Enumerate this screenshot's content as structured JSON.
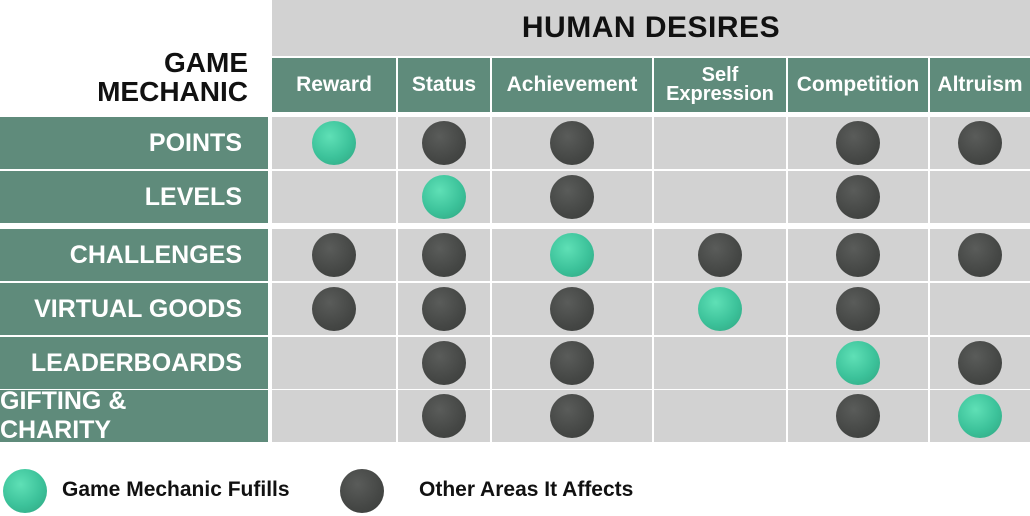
{
  "title": "HUMAN DESIRES",
  "corner": {
    "line1": "GAME",
    "line2": "MECHANIC"
  },
  "columns": [
    {
      "lines": [
        "Reward"
      ]
    },
    {
      "lines": [
        "Status"
      ]
    },
    {
      "lines": [
        "Achievement"
      ]
    },
    {
      "lines": [
        "Self",
        "Expression"
      ]
    },
    {
      "lines": [
        "Competition"
      ]
    },
    {
      "lines": [
        "Altruism"
      ]
    }
  ],
  "rows": [
    {
      "label": "POINTS",
      "cells": [
        "F",
        "A",
        "A",
        "",
        "A",
        "A"
      ]
    },
    {
      "label": "LEVELS",
      "cells": [
        "",
        "F",
        "A",
        "",
        "A",
        ""
      ]
    },
    {
      "label": "CHALLENGES",
      "cells": [
        "A",
        "A",
        "F",
        "A",
        "A",
        "A"
      ]
    },
    {
      "label": "VIRTUAL GOODS",
      "cells": [
        "A",
        "A",
        "A",
        "F",
        "A",
        ""
      ]
    },
    {
      "label": "LEADERBOARDS",
      "cells": [
        "",
        "A",
        "A",
        "",
        "F",
        "A"
      ]
    },
    {
      "label": "GIFTING & CHARITY",
      "cells": [
        "",
        "A",
        "A",
        "",
        "A",
        "F"
      ]
    }
  ],
  "legend": {
    "fulfills": "Game Mechanic Fufills",
    "affects": "Other Areas It Affects"
  },
  "colors": {
    "fulfills": "#3cc29a",
    "affects": "#454745",
    "header_green": "#5f8b7b",
    "cell_gray": "#d2d2d2"
  }
}
